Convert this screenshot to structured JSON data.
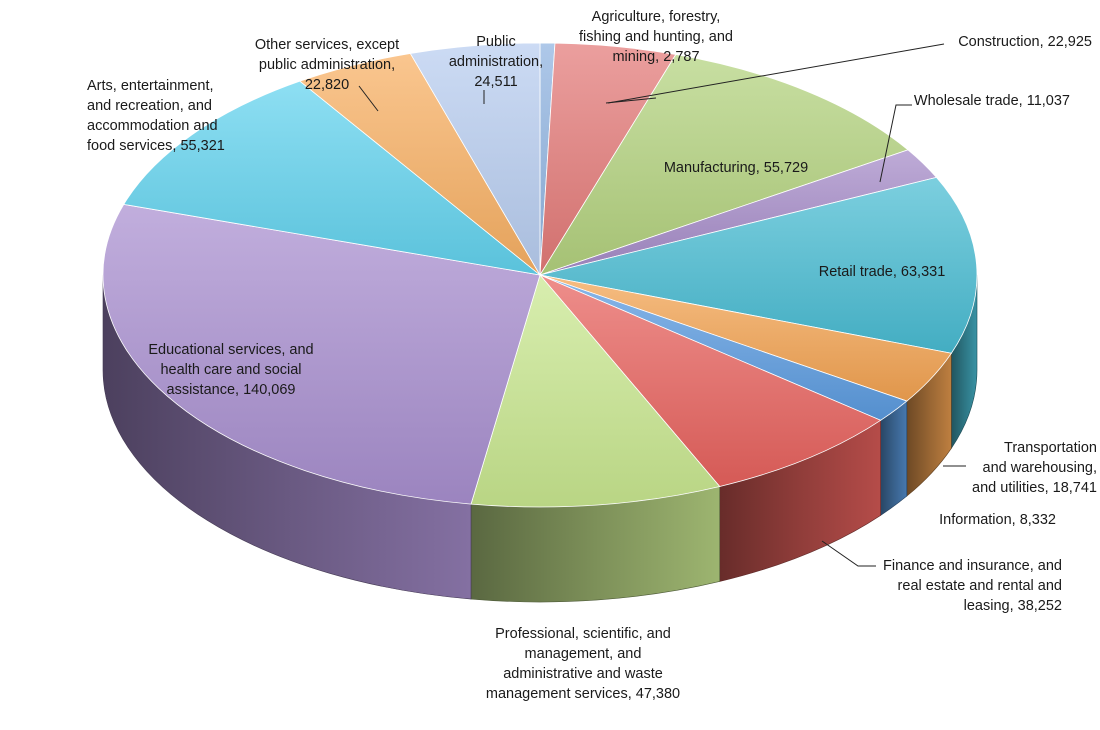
{
  "chart_data": {
    "type": "pie",
    "style": "3d",
    "title": "",
    "legend": "none",
    "slices": [
      {
        "label": [
          "Agriculture, forestry,",
          "fishing and hunting, and",
          "mining, 2,787"
        ],
        "category": "Agriculture, forestry, fishing and hunting, and mining",
        "value": 2787,
        "color": "#8fb3e0"
      },
      {
        "label": [
          "Construction, 22,925"
        ],
        "category": "Construction",
        "value": 22925,
        "color": "#e37a78"
      },
      {
        "label": [
          "Manufacturing, 55,729"
        ],
        "category": "Manufacturing",
        "value": 55729,
        "color": "#b3d27e"
      },
      {
        "label": [
          "Wholesale trade, 11,037"
        ],
        "category": "Wholesale trade",
        "value": 11037,
        "color": "#a58bc8"
      },
      {
        "label": [
          "Retail trade, 63,331"
        ],
        "category": "Retail trade",
        "value": 63331,
        "color": "#49bcd3"
      },
      {
        "label": [
          "Transportation",
          "and warehousing,",
          "and utilities, 18,741"
        ],
        "category": "Transportation and warehousing, and utilities",
        "value": 18741,
        "color": "#f3a352"
      },
      {
        "label": [
          "Information, 8,332"
        ],
        "category": "Information",
        "value": 8332,
        "color": "#5b9be0"
      },
      {
        "label": [
          "Finance and insurance, and",
          "real estate and rental and",
          "leasing, 38,252"
        ],
        "category": "Finance and insurance, and real estate and rental and leasing",
        "value": 38252,
        "color": "#e8625e"
      },
      {
        "label": [
          "Professional, scientific, and",
          "management, and",
          "administrative and waste",
          "management services, 47,380"
        ],
        "category": "Professional, scientific, and management, and administrative and waste management services",
        "value": 47380,
        "color": "#c9e890"
      },
      {
        "label": [
          "Educational services, and",
          "health care and social",
          "assistance, 140,069"
        ],
        "category": "Educational services, and health care and social assistance",
        "value": 140069,
        "color": "#a98fd0"
      },
      {
        "label": [
          "Arts, entertainment,",
          "and recreation, and",
          "accommodation and",
          "food services, 55,321"
        ],
        "category": "Arts, entertainment, and recreation, and accommodation and food services",
        "value": 55321,
        "color": "#62d3ee"
      },
      {
        "label": [
          "Other services, except",
          "public administration,",
          "22,820"
        ],
        "category": "Other services, except public administration",
        "value": 22820,
        "color": "#f8b063"
      },
      {
        "label": [
          "Public",
          "administration,",
          "24,511"
        ],
        "category": "Public administration",
        "value": 24511,
        "color": "#b8cdf0"
      }
    ]
  }
}
